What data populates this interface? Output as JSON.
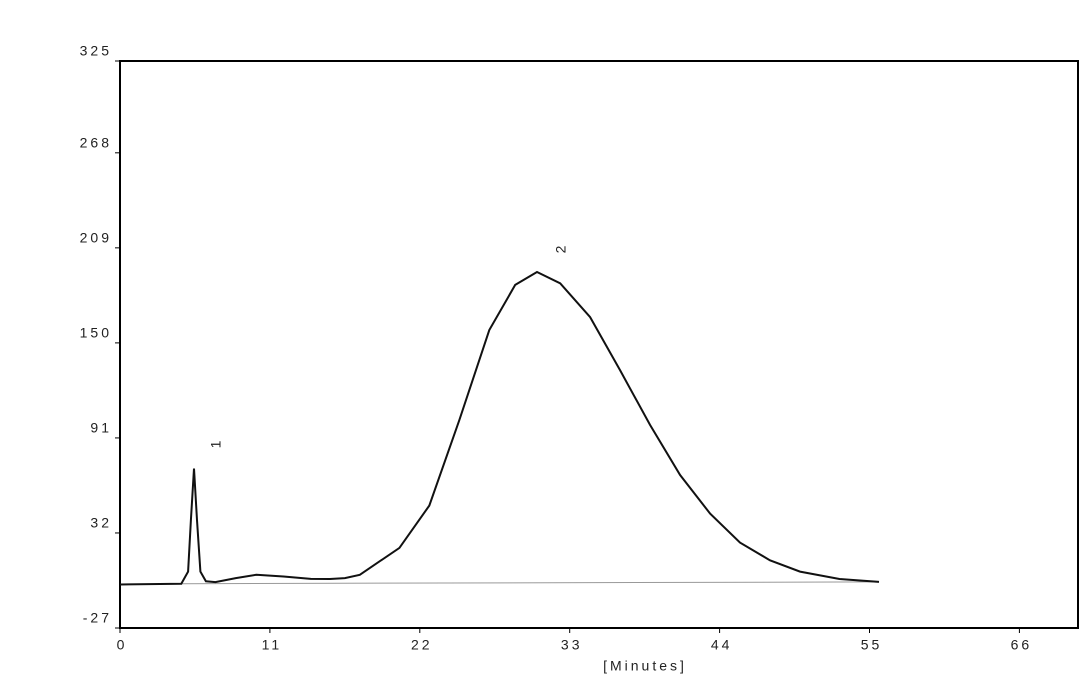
{
  "chart_data": {
    "type": "line",
    "x_label": "[Minutes]",
    "xlim": [
      0,
      70.3
    ],
    "ylim": [
      -27,
      325
    ],
    "xticks": [
      0,
      11,
      22,
      33,
      44,
      55,
      66
    ],
    "yticks": [
      -27,
      32,
      91,
      150,
      209,
      268,
      325
    ],
    "annotations": [
      "1",
      "2"
    ],
    "series": [
      {
        "color": "#111111",
        "x": [
          0,
          4.5,
          5.0,
          5.2,
          5.43,
          5.65,
          5.9,
          6.3,
          7,
          8.5,
          10,
          12,
          14,
          15.4,
          16.5,
          17.6,
          20.5,
          22.7,
          24.9,
          27.1,
          29.0,
          30.6,
          32.3,
          34.5,
          36.7,
          38.9,
          41.1,
          43.3,
          45.5,
          47.7,
          49.9,
          52.8,
          55.7
        ],
        "values": [
          0,
          0.5,
          8,
          40,
          72,
          40,
          8,
          2,
          1.5,
          4,
          6,
          5,
          3.5,
          3.4,
          4,
          6,
          22.7,
          49,
          102,
          158,
          186,
          194,
          187,
          166,
          133,
          99,
          68,
          44,
          26,
          15,
          8,
          3.4,
          1.6
        ]
      },
      {
        "color": "#999999",
        "x": [
          4.5,
          55.7
        ],
        "values": [
          0.5,
          1.6
        ]
      }
    ]
  }
}
